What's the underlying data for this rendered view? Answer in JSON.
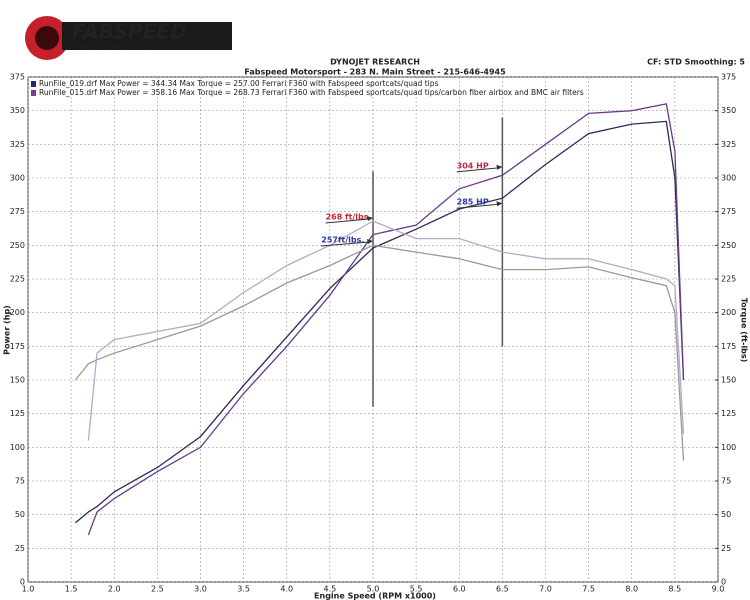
{
  "header": {
    "brand": "FABSPEED",
    "sub": "MOTORSPORT",
    "lab": "DYNOJET RESEARCH",
    "address": "Fabspeed Motorsport - 283 N. Main Street - 215-646-4945",
    "settings": "CF: STD  Smoothing: 5"
  },
  "chart_data": {
    "type": "line",
    "xlabel": "Engine Speed (RPM x1000)",
    "ylabel": "Power (hp)",
    "y2label": "Torque (ft-lbs)",
    "legend": [
      {
        "text": "RunFile_019.drf Max Power = 344.34   Max Torque = 257.00 Ferrari F360 with Fabspeed sportcats/quad tips",
        "color": "#2a2a6a"
      },
      {
        "text": "RunFile_015.drf Max Power = 358.16   Max Torque = 268.73 Ferrari F360 with Fabspeed sportcats/quad tips/carbon fiber airbox and BMC air filters",
        "color": "#7a3a9a"
      }
    ],
    "x": [
      1.55,
      1.7,
      1.8,
      2.0,
      2.5,
      3.0,
      3.5,
      4.0,
      4.5,
      5.0,
      5.5,
      6.0,
      6.5,
      7.0,
      7.5,
      8.0,
      8.4,
      8.5,
      8.6
    ],
    "series": [
      {
        "color": "#2a2a5a",
        "values": [
          44,
          52,
          56,
          67,
          85,
          108,
          146,
          182,
          218,
          248,
          262,
          277,
          285,
          310,
          333,
          340,
          342,
          300,
          150
        ]
      },
      {
        "color": "#6a3a8a",
        "values": [
          null,
          35,
          52,
          62,
          82,
          100,
          140,
          175,
          213,
          258,
          265,
          292,
          302,
          325,
          348,
          350,
          355,
          320,
          150
        ]
      },
      {
        "color": "#9a9a9a",
        "axis": "y2",
        "values": [
          150,
          162,
          165,
          170,
          180,
          190,
          205,
          222,
          235,
          250,
          245,
          240,
          232,
          232,
          234,
          226,
          220,
          200,
          90
        ]
      },
      {
        "color": "#b8a8c8",
        "axis": "y2",
        "values": [
          null,
          105,
          170,
          180,
          186,
          192,
          215,
          235,
          250,
          268,
          255,
          255,
          245,
          240,
          240,
          232,
          225,
          220,
          110
        ]
      }
    ],
    "xlim": [
      1,
      9
    ],
    "xticks": [
      {
        "value": 1,
        "label": "1.0"
      },
      1.5,
      {
        "value": 2,
        "label": "2.0"
      },
      2.5,
      {
        "value": 3,
        "label": "3.0"
      },
      3.5,
      {
        "value": 4,
        "label": "4.0"
      },
      4.5,
      {
        "value": 5,
        "label": "5.0"
      },
      5.5,
      {
        "value": 6,
        "label": "6.0"
      },
      6.5,
      {
        "value": 7,
        "label": "7.0"
      },
      7.5,
      {
        "value": 8,
        "label": "8.0"
      },
      8.5,
      {
        "value": 9,
        "label": "9.0"
      }
    ],
    "ylim": [
      0,
      375
    ],
    "yticks": [
      0,
      25,
      50,
      75,
      100,
      125,
      150,
      175,
      200,
      225,
      250,
      275,
      300,
      325,
      350,
      375
    ],
    "y2lim": [
      0,
      375
    ],
    "y2ticks": [
      0,
      25,
      50,
      75,
      100,
      125,
      150,
      175,
      200,
      225,
      250,
      275,
      300,
      325,
      350,
      375
    ],
    "grid": true,
    "vlines": [
      {
        "x": 5,
        "ymin": 130,
        "ymax": 305
      },
      {
        "x": 6.5,
        "ymin": 175,
        "ymax": 345
      }
    ],
    "annotations": [
      {
        "text": "268 ft/lbs.",
        "x": 4.45,
        "y": 271,
        "tip": 5,
        "color": "#c8283c"
      },
      {
        "text": "257ft/lbs.",
        "x": 4.4,
        "y": 254,
        "tip": 5,
        "color": "#2a3aa0"
      },
      {
        "text": "304 HP",
        "x": 5.97,
        "y": 309,
        "tip": 6.5,
        "color": "#c8283c"
      },
      {
        "text": "285 HP",
        "x": 5.97,
        "y": 282,
        "tip": 6.5,
        "color": "#2a3aa0"
      }
    ]
  }
}
